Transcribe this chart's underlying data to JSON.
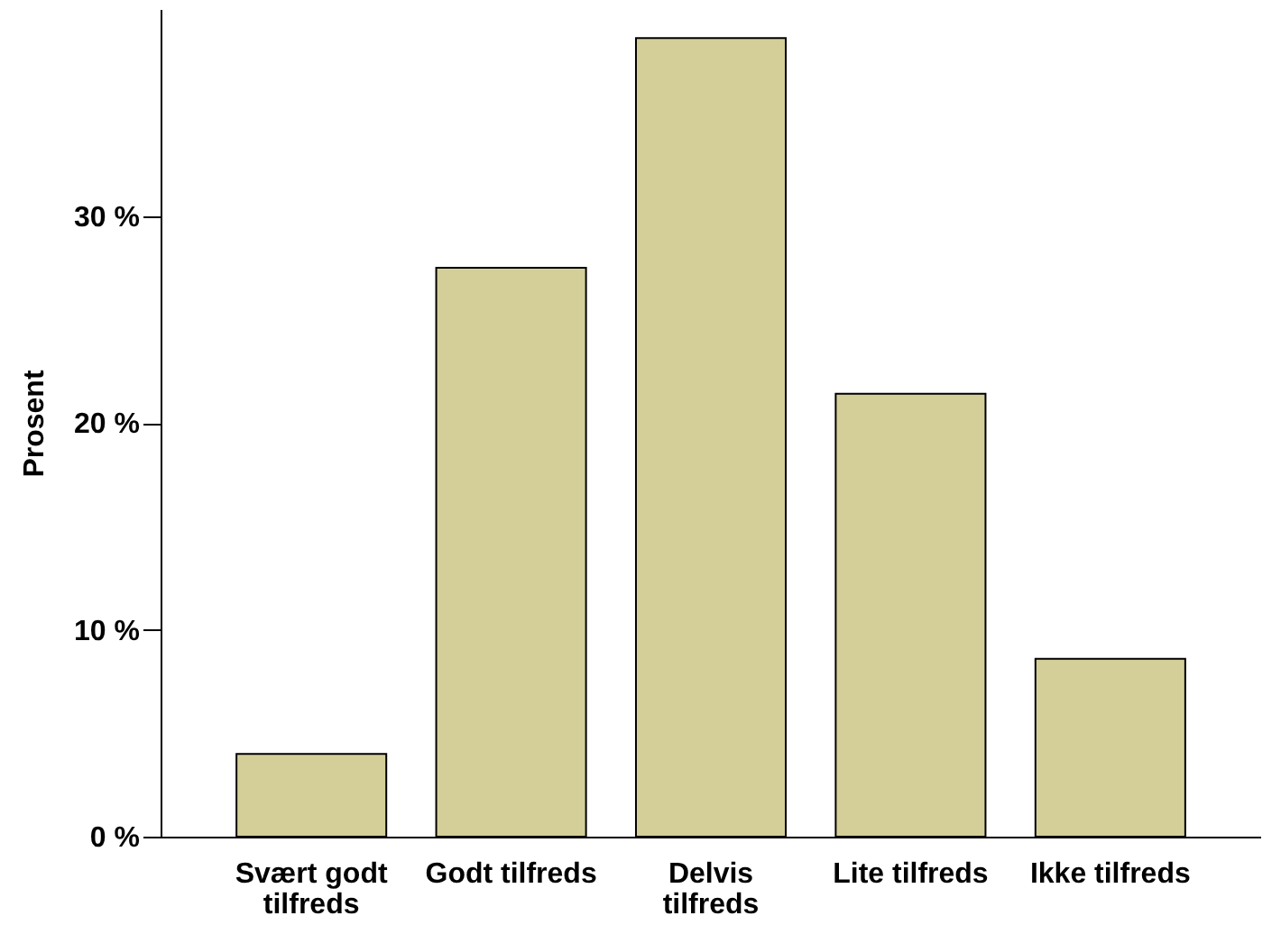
{
  "chart_data": {
    "type": "bar",
    "ylabel": "Prosent",
    "categories": [
      "Svært godt tilfreds",
      "Godt tilfreds",
      "Delvis tilfreds",
      "Lite tilfreds",
      "Ikke tilfreds"
    ],
    "values": [
      4.0,
      27.5,
      38.6,
      21.4,
      8.6
    ],
    "color": "#d4cf98",
    "ylim": [
      0,
      40
    ],
    "yticks": [
      {
        "value": 0,
        "label": "0 %"
      },
      {
        "value": 10,
        "label": "10 %"
      },
      {
        "value": 20,
        "label": "20 %"
      },
      {
        "value": 30,
        "label": "30 %"
      }
    ],
    "grid": false
  }
}
